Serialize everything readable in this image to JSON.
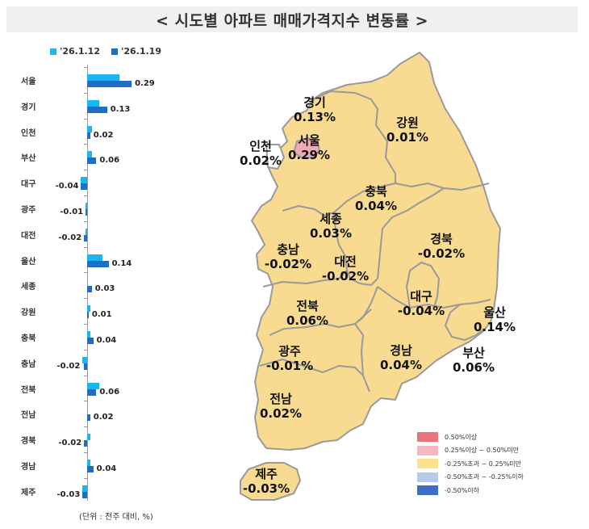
{
  "title": "< 시도별 아파트 매매가격지수 변동률 >",
  "legend": [
    {
      "label": "'26.1.12",
      "color": "#1ab6f0"
    },
    {
      "label": "'26.1.19",
      "color": "#1e6fc4"
    }
  ],
  "unit_note": "(단위 : 전주 대비, %)",
  "chart_data": {
    "type": "bar",
    "orientation": "horizontal",
    "title": "시도별 아파트 매매가격지수 변동률",
    "categories": [
      "서울",
      "경기",
      "인천",
      "부산",
      "대구",
      "광주",
      "대전",
      "울산",
      "세종",
      "강원",
      "충북",
      "충남",
      "전북",
      "전남",
      "경북",
      "경남",
      "제주"
    ],
    "series": [
      {
        "name": "'26.1.12",
        "values": [
          0.21,
          0.08,
          0.03,
          0.03,
          -0.04,
          -0.01,
          -0.01,
          0.1,
          0.0,
          0.02,
          0.02,
          -0.03,
          0.08,
          0.0,
          0.02,
          0.02,
          -0.03
        ]
      },
      {
        "name": "'26.1.19",
        "values": [
          0.29,
          0.13,
          0.02,
          0.06,
          -0.04,
          -0.01,
          -0.02,
          0.14,
          0.03,
          0.01,
          0.04,
          -0.02,
          0.06,
          0.02,
          -0.02,
          0.04,
          -0.03
        ]
      }
    ],
    "value_labels": [
      "0.29",
      "0.13",
      "0.02",
      "0.06",
      "-0.04",
      "-0.01",
      "-0.02",
      "0.14",
      "0.03",
      "0.01",
      "0.04",
      "-0.02",
      "0.06",
      "0.02",
      "-0.02",
      "0.04",
      "-0.03"
    ],
    "xlabel": "",
    "ylabel": "",
    "unit": "(단위 : 전주 대비, %)",
    "legend_position": "top"
  },
  "map": {
    "regions": [
      {
        "name": "경기",
        "value": "0.13%"
      },
      {
        "name": "강원",
        "value": "0.01%"
      },
      {
        "name": "인천",
        "value": "0.02%"
      },
      {
        "name": "서울",
        "value": "0.29%"
      },
      {
        "name": "충북",
        "value": "0.04%"
      },
      {
        "name": "세종",
        "value": "0.03%"
      },
      {
        "name": "경북",
        "value": "-0.02%"
      },
      {
        "name": "충남",
        "value": "-0.02%"
      },
      {
        "name": "대전",
        "value": "-0.02%"
      },
      {
        "name": "전북",
        "value": "0.06%"
      },
      {
        "name": "대구",
        "value": "-0.04%"
      },
      {
        "name": "울산",
        "value": "0.14%"
      },
      {
        "name": "광주",
        "value": "-0.01%"
      },
      {
        "name": "경남",
        "value": "0.04%"
      },
      {
        "name": "부산",
        "value": "0.06%"
      },
      {
        "name": "전남",
        "value": "0.02%"
      },
      {
        "name": "제주",
        "value": "-0.03%"
      }
    ],
    "legend": [
      {
        "label": "0.50%이상",
        "color": "#e9747c"
      },
      {
        "label": "0.25%이상 ~ 0.50%미만",
        "color": "#f4b8c0"
      },
      {
        "label": "-0.25%초과 ~ 0.25%미만",
        "color": "#fbe08e"
      },
      {
        "label": "-0.50%초과 ~ -0.25%이하",
        "color": "#b9c9ea"
      },
      {
        "label": "-0.50%이하",
        "color": "#3f6cc6"
      }
    ],
    "colors": {
      "land": "#f8da90",
      "border": "#9a9a9a",
      "seoul": "#f0aab4"
    }
  }
}
